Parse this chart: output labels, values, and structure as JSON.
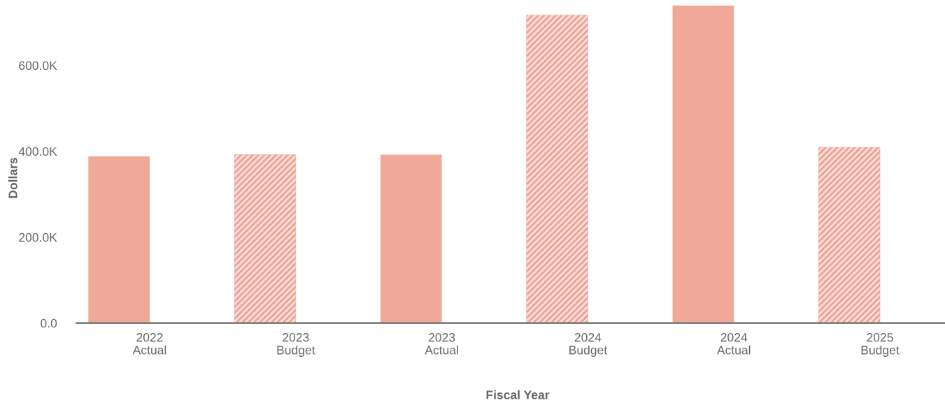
{
  "chart_data": {
    "type": "bar",
    "xlabel": "Fiscal Year",
    "ylabel": "Dollars",
    "categories": [
      "2022\nActual",
      "2023\nBudget",
      "2023\nActual",
      "2024\nBudget",
      "2024\nActual",
      "2025\nBudget"
    ],
    "series": [
      {
        "color": "#f0a899",
        "values": [
          388000,
          null,
          392000,
          null,
          739000,
          null
        ]
      },
      {
        "color": "#eea293",
        "values": [
          null,
          392000,
          null,
          717000,
          null,
          409000
        ]
      }
    ],
    "ylim": [
      0,
      739000
    ],
    "yticks": [
      {
        "value": 0,
        "label": "0.0"
      },
      {
        "value": 200000,
        "label": "200.0K"
      },
      {
        "value": 400000,
        "label": "400.0K"
      },
      {
        "value": 600000,
        "label": "600.0K"
      }
    ],
    "grid": false
  }
}
